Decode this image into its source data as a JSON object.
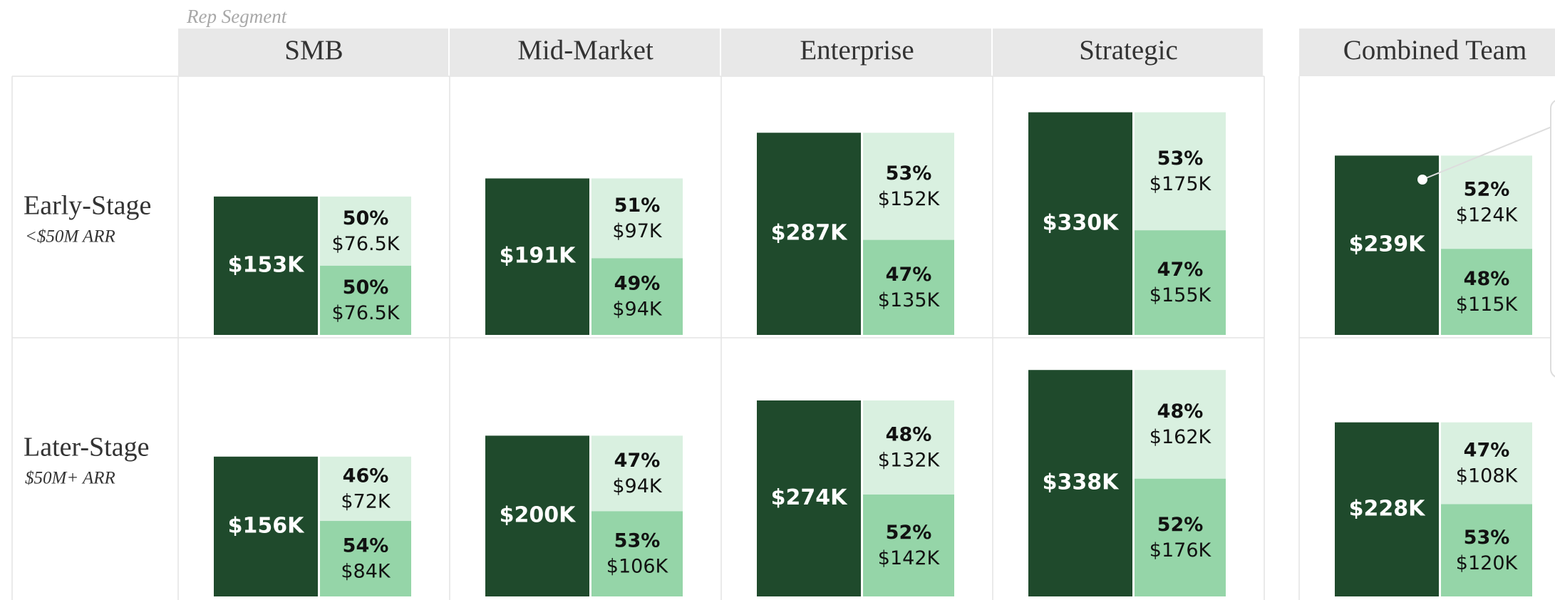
{
  "chart_data": {
    "type": "bar-matrix",
    "legend_title": "Rep Segment",
    "columns": [
      "SMB",
      "Mid-Market",
      "Enterprise",
      "Strategic",
      "Combined Team"
    ],
    "colors": {
      "total": "#1f4a2c",
      "top": "#d9f0e0",
      "bottom": "#95d5a8"
    },
    "rows": [
      {
        "label": "Early-Stage",
        "sublabel": "<$50M ARR",
        "cells": [
          {
            "value": 153000,
            "value_label": "$153K",
            "segments": [
              {
                "pct": 50,
                "pct_label": "50%",
                "value": 76500,
                "value_label": "$76.5K"
              },
              {
                "pct": 50,
                "pct_label": "50%",
                "value": 76500,
                "value_label": "$76.5K"
              }
            ]
          },
          {
            "value": 191000,
            "value_label": "$191K",
            "segments": [
              {
                "pct": 51,
                "pct_label": "51%",
                "value": 97000,
                "value_label": "$97K"
              },
              {
                "pct": 49,
                "pct_label": "49%",
                "value": 94000,
                "value_label": "$94K"
              }
            ]
          },
          {
            "value": 287000,
            "value_label": "$287K",
            "segments": [
              {
                "pct": 53,
                "pct_label": "53%",
                "value": 152000,
                "value_label": "$152K"
              },
              {
                "pct": 47,
                "pct_label": "47%",
                "value": 135000,
                "value_label": "$135K"
              }
            ]
          },
          {
            "value": 330000,
            "value_label": "$330K",
            "segments": [
              {
                "pct": 53,
                "pct_label": "53%",
                "value": 175000,
                "value_label": "$175K"
              },
              {
                "pct": 47,
                "pct_label": "47%",
                "value": 155000,
                "value_label": "$155K"
              }
            ]
          },
          {
            "value": 239000,
            "value_label": "$239K",
            "segments": [
              {
                "pct": 52,
                "pct_label": "52%",
                "value": 124000,
                "value_label": "$124K"
              },
              {
                "pct": 48,
                "pct_label": "48%",
                "value": 115000,
                "value_label": "$115K"
              }
            ]
          }
        ]
      },
      {
        "label": "Later-Stage",
        "sublabel": "$50M+ ARR",
        "cells": [
          {
            "value": 156000,
            "value_label": "$156K",
            "segments": [
              {
                "pct": 46,
                "pct_label": "46%",
                "value": 72000,
                "value_label": "$72K"
              },
              {
                "pct": 54,
                "pct_label": "54%",
                "value": 84000,
                "value_label": "$84K"
              }
            ]
          },
          {
            "value": 200000,
            "value_label": "$200K",
            "segments": [
              {
                "pct": 47,
                "pct_label": "47%",
                "value": 94000,
                "value_label": "$94K"
              },
              {
                "pct": 53,
                "pct_label": "53%",
                "value": 106000,
                "value_label": "$106K"
              }
            ]
          },
          {
            "value": 274000,
            "value_label": "$274K",
            "segments": [
              {
                "pct": 48,
                "pct_label": "48%",
                "value": 132000,
                "value_label": "$132K"
              },
              {
                "pct": 52,
                "pct_label": "52%",
                "value": 142000,
                "value_label": "$142K"
              }
            ]
          },
          {
            "value": 338000,
            "value_label": "$338K",
            "segments": [
              {
                "pct": 48,
                "pct_label": "48%",
                "value": 162000,
                "value_label": "$162K"
              },
              {
                "pct": 52,
                "pct_label": "52%",
                "value": 176000,
                "value_label": "$176K"
              }
            ]
          },
          {
            "value": 228000,
            "value_label": "$228K",
            "segments": [
              {
                "pct": 47,
                "pct_label": "47%",
                "value": 108000,
                "value_label": "$108K"
              },
              {
                "pct": 53,
                "pct_label": "53%",
                "value": 120000,
                "value_label": "$120K"
              }
            ]
          }
        ]
      }
    ]
  }
}
